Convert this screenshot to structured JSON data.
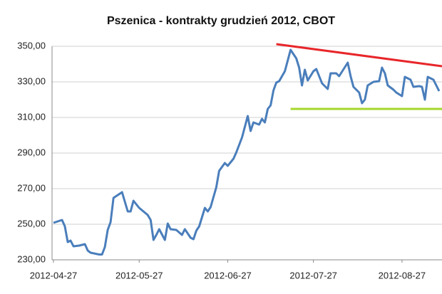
{
  "chart_data": {
    "type": "line",
    "title": "Pszenica - kontrakty grudzień 2012, CBOT",
    "xlim": [
      "2012-04-27",
      "2012-09-10"
    ],
    "xticks": [
      "2012-04-27",
      "2012-05-27",
      "2012-06-27",
      "2012-07-27",
      "2012-08-27"
    ],
    "ylim": [
      230,
      350
    ],
    "yticks": [
      {
        "value": 230,
        "label": "230,00"
      },
      {
        "value": 250,
        "label": "250,00"
      },
      {
        "value": 270,
        "label": "270,00"
      },
      {
        "value": 290,
        "label": "290,00"
      },
      {
        "value": 310,
        "label": "310,00"
      },
      {
        "value": 330,
        "label": "330,00"
      },
      {
        "value": 350,
        "label": "350,00"
      }
    ],
    "grid": true,
    "series": [
      {
        "color": "#4a7ebb",
        "x": [
          "2012-04-27",
          "2012-04-30",
          "2012-05-01",
          "2012-05-02",
          "2012-05-03",
          "2012-05-04",
          "2012-05-06",
          "2012-05-08",
          "2012-05-09",
          "2012-05-10",
          "2012-05-13",
          "2012-05-14",
          "2012-05-15",
          "2012-05-16",
          "2012-05-17",
          "2012-05-18",
          "2012-05-21",
          "2012-05-23",
          "2012-05-24",
          "2012-05-25",
          "2012-05-27",
          "2012-05-30",
          "2012-05-31",
          "2012-06-01",
          "2012-06-02",
          "2012-06-03",
          "2012-06-05",
          "2012-06-06",
          "2012-06-07",
          "2012-06-09",
          "2012-06-11",
          "2012-06-12",
          "2012-06-14",
          "2012-06-15",
          "2012-06-16",
          "2012-06-17",
          "2012-06-19",
          "2012-06-20",
          "2012-06-21",
          "2012-06-23",
          "2012-06-24",
          "2012-06-26",
          "2012-06-27",
          "2012-06-29",
          "2012-06-30",
          "2012-07-02",
          "2012-07-04",
          "2012-07-05",
          "2012-07-06",
          "2012-07-08",
          "2012-07-09",
          "2012-07-10",
          "2012-07-11",
          "2012-07-12",
          "2012-07-13",
          "2012-07-14",
          "2012-07-15",
          "2012-07-17",
          "2012-07-19",
          "2012-07-21",
          "2012-07-22",
          "2012-07-23",
          "2012-07-24",
          "2012-07-25",
          "2012-07-27",
          "2012-07-28",
          "2012-07-30",
          "2012-08-01",
          "2012-08-02",
          "2012-08-04",
          "2012-08-05",
          "2012-08-08",
          "2012-08-09",
          "2012-08-10",
          "2012-08-12",
          "2012-08-13",
          "2012-08-14",
          "2012-08-15",
          "2012-08-17",
          "2012-08-19",
          "2012-08-20",
          "2012-08-21",
          "2012-08-22",
          "2012-08-24",
          "2012-08-25",
          "2012-08-27",
          "2012-08-28",
          "2012-08-30",
          "2012-08-31",
          "2012-09-02",
          "2012-09-03",
          "2012-09-04",
          "2012-09-05",
          "2012-09-07",
          "2012-09-09"
        ],
        "values": [
          250.8,
          252.4,
          248.8,
          240,
          240.8,
          237.6,
          238,
          238.8,
          235.2,
          234,
          233,
          233,
          237.2,
          246.8,
          251.2,
          264.8,
          268,
          257.2,
          257.2,
          263.2,
          259.2,
          255.2,
          252.4,
          241.2,
          244,
          247.2,
          241.2,
          250.4,
          247.2,
          246.8,
          244,
          247.2,
          242.4,
          241.6,
          246.4,
          248.8,
          259.2,
          257.2,
          259.6,
          270.8,
          280,
          284.4,
          282.8,
          286.8,
          290.4,
          298.8,
          310.8,
          302.4,
          307.2,
          306,
          309.2,
          307.2,
          314.8,
          316.8,
          325.2,
          329.6,
          330.4,
          336,
          348,
          343.2,
          338,
          328,
          336.8,
          330.8,
          336,
          337.2,
          329.2,
          326,
          334.8,
          334.8,
          333.2,
          340.8,
          333.2,
          327.2,
          324,
          318,
          320,
          328,
          330,
          330.4,
          338,
          334.8,
          328,
          325.6,
          324,
          322,
          332.8,
          331.2,
          327.2,
          327.6,
          327.2,
          320,
          332.8,
          331.2,
          324.8
        ]
      }
    ],
    "trend_lines": [
      {
        "color": "#e8262a",
        "x": [
          "2012-07-14",
          "2012-09-10"
        ],
        "values": [
          351.2,
          338.8
        ]
      },
      {
        "color": "#a6d62c",
        "x": [
          "2012-07-19",
          "2012-09-10"
        ],
        "values": [
          314.8,
          314.8
        ]
      }
    ]
  }
}
